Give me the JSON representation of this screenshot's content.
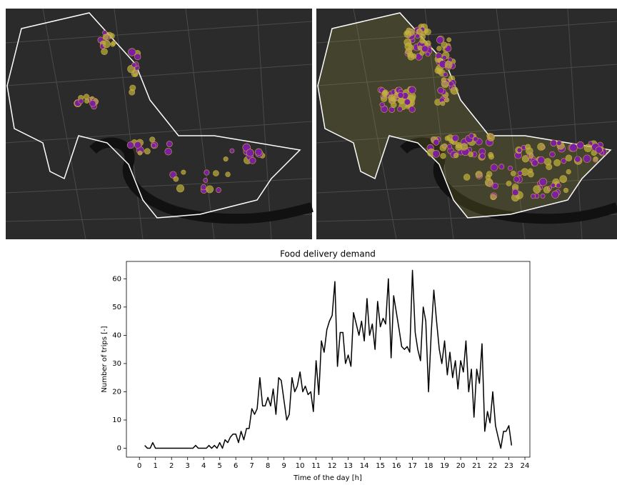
{
  "chart_data": {
    "type": "line",
    "title": "Food delivery demand",
    "x_label": "Time of the day [h]",
    "y_label": "Number of trips [-]",
    "color": "#000000",
    "x": [
      0.33,
      0.5,
      0.67,
      0.83,
      1.0,
      1.17,
      1.33,
      1.5,
      1.67,
      1.83,
      2.0,
      2.17,
      2.33,
      2.5,
      2.67,
      2.83,
      3.0,
      3.17,
      3.33,
      3.5,
      3.67,
      3.83,
      4.0,
      4.17,
      4.33,
      4.5,
      4.67,
      4.83,
      5.0,
      5.17,
      5.33,
      5.5,
      5.67,
      5.83,
      6.0,
      6.17,
      6.33,
      6.5,
      6.67,
      6.83,
      7.0,
      7.17,
      7.33,
      7.5,
      7.67,
      7.83,
      8.0,
      8.17,
      8.33,
      8.5,
      8.67,
      8.83,
      9.0,
      9.17,
      9.33,
      9.5,
      9.67,
      9.83,
      10.0,
      10.17,
      10.33,
      10.5,
      10.67,
      10.83,
      11.0,
      11.17,
      11.33,
      11.5,
      11.67,
      11.83,
      12.0,
      12.17,
      12.33,
      12.5,
      12.67,
      12.83,
      13.0,
      13.17,
      13.33,
      13.5,
      13.67,
      13.83,
      14.0,
      14.17,
      14.33,
      14.5,
      14.67,
      14.83,
      15.0,
      15.17,
      15.33,
      15.5,
      15.67,
      15.83,
      16.0,
      16.17,
      16.33,
      16.5,
      16.67,
      16.83,
      17.0,
      17.17,
      17.33,
      17.5,
      17.67,
      17.83,
      18.0,
      18.17,
      18.33,
      18.5,
      18.67,
      18.83,
      19.0,
      19.17,
      19.33,
      19.5,
      19.67,
      19.83,
      20.0,
      20.17,
      20.33,
      20.5,
      20.67,
      20.83,
      21.0,
      21.17,
      21.33,
      21.5,
      21.67,
      21.83,
      22.0,
      22.17,
      22.33,
      22.5,
      22.67,
      22.83,
      23.0,
      23.17
    ],
    "values": [
      1,
      0,
      0,
      2,
      0,
      0,
      0,
      0,
      0,
      0,
      0,
      0,
      0,
      0,
      0,
      0,
      0,
      0,
      0,
      1,
      0,
      0,
      0,
      0,
      1,
      0,
      1,
      0,
      2,
      0,
      3,
      2,
      4,
      5,
      5,
      2,
      6,
      3,
      7,
      7,
      14,
      12,
      14,
      25,
      15,
      15,
      18,
      15,
      21,
      12,
      25,
      24,
      17,
      10,
      12,
      25,
      20,
      22,
      27,
      20,
      22,
      19,
      20,
      13,
      31,
      19,
      38,
      34,
      42,
      45,
      47,
      59,
      29,
      41,
      41,
      30,
      33,
      29,
      48,
      44,
      40,
      45,
      38,
      53,
      40,
      44,
      35,
      52,
      43,
      46,
      44,
      60,
      32,
      54,
      48,
      42,
      36,
      35,
      36,
      34,
      63,
      41,
      35,
      31,
      50,
      45,
      20,
      41,
      56,
      45,
      35,
      30,
      38,
      26,
      34,
      25,
      31,
      21,
      31,
      27,
      38,
      20,
      28,
      11,
      28,
      23,
      37,
      6,
      13,
      9,
      20,
      8,
      4,
      0,
      6,
      6,
      8,
      1
    ],
    "xlim": [
      -0.81,
      24.31
    ],
    "ylim": [
      -3.15,
      66.15
    ],
    "xticks": [
      0,
      1,
      2,
      3,
      4,
      5,
      6,
      7,
      8,
      9,
      10,
      11,
      12,
      13,
      14,
      15,
      16,
      17,
      18,
      19,
      20,
      21,
      22,
      23,
      24
    ],
    "yticks": [
      0,
      10,
      20,
      30,
      40,
      50,
      60
    ]
  }
}
